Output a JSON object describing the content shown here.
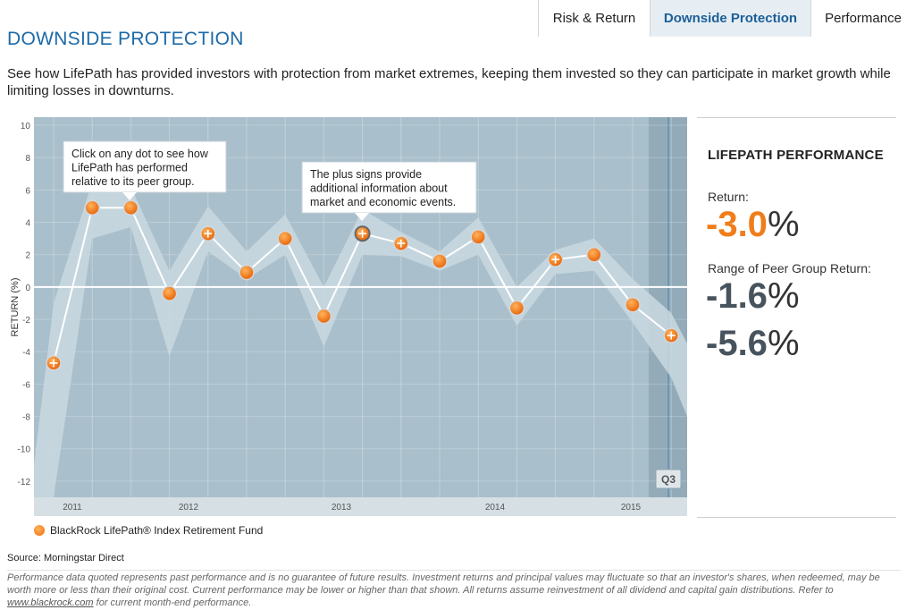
{
  "tabs": [
    {
      "label": "Risk & Return"
    },
    {
      "label": "Downside Protection"
    },
    {
      "label": "Performance"
    }
  ],
  "page": {
    "title": "DOWNSIDE PROTECTION",
    "description": "See how LifePath has provided investors with protection from market extremes, keeping them invested so they can participate in market growth while limiting losses in downturns."
  },
  "panel": {
    "title": "LIFEPATH PERFORMANCE",
    "return_label": "Return:",
    "return_value": "-3.0",
    "range_label": "Range of Peer Group Return:",
    "range_high": "-1.6",
    "range_low": "-5.6",
    "percent_sign": "%"
  },
  "legend": {
    "label": "BlackRock LifePath® Index Retirement Fund"
  },
  "source": "Source: Morningstar Direct",
  "disclaimer": {
    "text": "Performance data quoted represents past performance and is no guarantee of future results. Investment returns and principal values may fluctuate so that an investor's shares, when redeemed, may be worth more or less than their original cost. Current performance may be lower or higher than that shown. All returns assume reinvestment of all dividend and capital gain distributions. Refer to",
    "link": "www.blackrock.com",
    "suffix": "for current month-end performance."
  },
  "colors": {
    "plot_bg": "#a9bfcb",
    "band": "#c9d8e0",
    "line": "#ffffff",
    "dot": "#f07d1a",
    "highlight_bg": "#93abb9",
    "title": "#1d6aa8"
  },
  "chart_data": {
    "type": "line",
    "ylabel": "RETURN (%)",
    "ylim": [
      -13,
      10.5
    ],
    "yticks": [
      10,
      8,
      6,
      4,
      2,
      0,
      -2,
      -4,
      -6,
      -8,
      -10,
      -12
    ],
    "x_ticks": [
      "2011",
      "2012",
      "2013",
      "2014",
      "2015"
    ],
    "highlight_label": "Q3",
    "grid": true,
    "series": [
      {
        "name": "BlackRock LifePath® Index Retirement Fund",
        "values": [
          -4.7,
          4.9,
          4.9,
          -0.4,
          3.3,
          0.9,
          3.0,
          -1.8,
          3.3,
          2.7,
          1.6,
          3.1,
          -1.3,
          1.7,
          2.0,
          -1.1,
          -3.0
        ],
        "event_markers": [
          true,
          false,
          false,
          false,
          true,
          false,
          false,
          false,
          true,
          true,
          false,
          false,
          false,
          true,
          false,
          false,
          true
        ]
      }
    ],
    "peer_range": {
      "high": [
        -1.0,
        6.5,
        6.2,
        1.0,
        5.0,
        2.2,
        4.5,
        0.0,
        4.8,
        3.4,
        2.2,
        4.3,
        0.0,
        2.3,
        3.0,
        0.5,
        -1.6
      ],
      "low": [
        -13.0,
        3.0,
        3.7,
        -4.3,
        2.2,
        0.5,
        2.0,
        -3.7,
        2.0,
        1.9,
        1.0,
        2.0,
        -2.4,
        0.8,
        1.0,
        -2.2,
        -5.6
      ]
    },
    "annotations": [
      {
        "text_lines": [
          "Click on any dot to see how",
          "LifePath has performed",
          "relative to its peer group."
        ]
      },
      {
        "text_lines": [
          "The plus signs provide",
          "additional information about",
          "market and economic events."
        ]
      }
    ]
  }
}
